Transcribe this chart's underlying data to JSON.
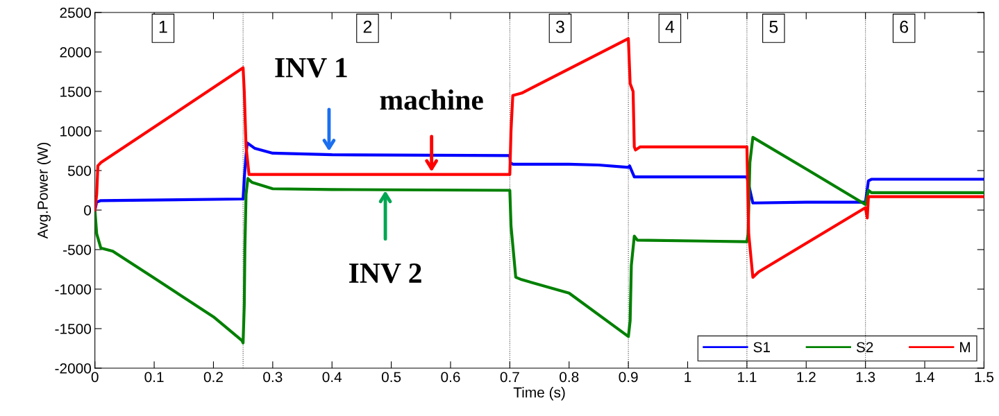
{
  "chart_data": {
    "type": "line",
    "xlabel": "Time (s)",
    "ylabel": "Avg.Power (W)",
    "xlim": [
      0,
      1.5
    ],
    "ylim": [
      -2000,
      2500
    ],
    "xticks": [
      0,
      0.1,
      0.2,
      0.3,
      0.4,
      0.5,
      0.6,
      0.7,
      0.8,
      0.9,
      1,
      1.1,
      1.2,
      1.3,
      1.4,
      1.5
    ],
    "yticks": [
      -2000,
      -1500,
      -1000,
      -500,
      0,
      500,
      1000,
      1500,
      2000,
      2500
    ],
    "legend": "bottom right",
    "grid": false,
    "marker": "none",
    "line_style": "solid",
    "series": [
      {
        "name": "S1",
        "color": "#0000ff",
        "x": [
          0,
          0.003,
          0.01,
          0.25,
          0.252,
          0.255,
          0.257,
          0.27,
          0.3,
          0.4,
          0.7,
          0.701,
          0.705,
          0.8,
          0.85,
          0.9,
          0.902,
          0.91,
          1.0,
          1.1,
          1.11,
          1.2,
          1.3,
          1.305,
          1.31,
          1.5
        ],
        "values": [
          0,
          100,
          120,
          140,
          400,
          700,
          850,
          780,
          720,
          700,
          690,
          600,
          580,
          580,
          570,
          540,
          560,
          420,
          420,
          420,
          90,
          100,
          100,
          370,
          390,
          390
        ]
      },
      {
        "name": "S2",
        "color": "#008000",
        "x": [
          0,
          0.003,
          0.01,
          0.03,
          0.1,
          0.2,
          0.248,
          0.25,
          0.252,
          0.253,
          0.255,
          0.258,
          0.265,
          0.3,
          0.4,
          0.7,
          0.702,
          0.71,
          0.72,
          0.8,
          0.9,
          0.903,
          0.905,
          0.91,
          0.915,
          1.1,
          1.102,
          1.105,
          1.11,
          1.2,
          1.3,
          1.305,
          1.31,
          1.5
        ],
        "values": [
          0,
          -300,
          -480,
          -520,
          -860,
          -1350,
          -1650,
          -1680,
          -1200,
          -500,
          200,
          400,
          350,
          270,
          260,
          250,
          -200,
          -850,
          -880,
          -1050,
          -1600,
          -1400,
          -700,
          -330,
          -380,
          -400,
          -300,
          600,
          920,
          520,
          70,
          250,
          220,
          220
        ]
      },
      {
        "name": "M",
        "color": "#ff0000",
        "x": [
          0,
          0.003,
          0.005,
          0.01,
          0.25,
          0.252,
          0.255,
          0.26,
          0.7,
          0.702,
          0.705,
          0.72,
          0.9,
          0.903,
          0.908,
          0.91,
          0.912,
          0.92,
          1.1,
          1.103,
          1.11,
          1.12,
          1.3,
          1.303,
          1.305,
          1.5
        ],
        "values": [
          0,
          200,
          560,
          600,
          1800,
          1500,
          800,
          450,
          450,
          1000,
          1450,
          1480,
          2170,
          1600,
          1500,
          800,
          760,
          800,
          800,
          -300,
          -850,
          -780,
          30,
          -100,
          170,
          170
        ]
      }
    ],
    "ref_lines": [
      {
        "axis": "x",
        "value": 0.25,
        "color": "#444444",
        "line_style": "dotted"
      },
      {
        "axis": "x",
        "value": 0.7,
        "color": "#444444",
        "line_style": "dotted"
      },
      {
        "axis": "x",
        "value": 0.9,
        "color": "#444444",
        "line_style": "dotted"
      },
      {
        "axis": "x",
        "value": 1.1,
        "color": "#444444",
        "line_style": "dotted"
      },
      {
        "axis": "x",
        "value": 1.3,
        "color": "#444444",
        "line_style": "dotted"
      }
    ],
    "annotations": [
      {
        "text": "1",
        "x": 0.115,
        "y": 2300
      },
      {
        "text": "2",
        "x": 0.46,
        "y": 2300
      },
      {
        "text": "3",
        "x": 0.785,
        "y": 2300
      },
      {
        "text": "4",
        "x": 0.97,
        "y": 2300
      },
      {
        "text": "5",
        "x": 1.145,
        "y": 2300
      },
      {
        "text": "6",
        "x": 1.365,
        "y": 2300
      },
      {
        "text": "INV 1",
        "x": 0.395,
        "y": 720
      },
      {
        "text": "machine",
        "x": 0.568,
        "y": 460
      },
      {
        "text": "INV 2",
        "x": 0.49,
        "y": 270
      }
    ]
  }
}
